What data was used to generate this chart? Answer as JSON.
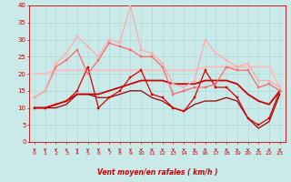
{
  "xlabel": "Vent moyen/en rafales ( km/h )",
  "xlim": [
    -0.5,
    23.5
  ],
  "ylim": [
    0,
    40
  ],
  "yticks": [
    0,
    5,
    10,
    15,
    20,
    25,
    30,
    35,
    40
  ],
  "xticks": [
    0,
    1,
    2,
    3,
    4,
    5,
    6,
    7,
    8,
    9,
    10,
    11,
    12,
    13,
    14,
    15,
    16,
    17,
    18,
    19,
    20,
    21,
    22,
    23
  ],
  "background_color": "#caeaea",
  "grid_color": "#aad4d4",
  "series": [
    {
      "x": [
        0,
        1,
        2,
        3,
        4,
        5,
        6,
        7,
        8,
        9,
        10,
        11,
        12,
        13,
        14,
        15,
        16,
        17,
        18,
        19,
        20,
        21,
        22,
        23
      ],
      "y": [
        10,
        10,
        11,
        12,
        15,
        22,
        10,
        13,
        15,
        19,
        21,
        14,
        13,
        10,
        9,
        13,
        21,
        16,
        16,
        13,
        7,
        5,
        7,
        15
      ],
      "color": "#dd0000",
      "lw": 0.9,
      "marker": "s",
      "ms": 1.8,
      "zorder": 5
    },
    {
      "x": [
        0,
        1,
        2,
        3,
        4,
        5,
        6,
        7,
        8,
        9,
        10,
        11,
        12,
        13,
        14,
        15,
        16,
        17,
        18,
        19,
        20,
        21,
        22,
        23
      ],
      "y": [
        10,
        10,
        11,
        12,
        14,
        14,
        14,
        15,
        16,
        17,
        18,
        18,
        18,
        17,
        17,
        17,
        18,
        18,
        18,
        17,
        14,
        12,
        11,
        15
      ],
      "color": "#cc0000",
      "lw": 1.3,
      "marker": null,
      "ms": 0,
      "zorder": 4
    },
    {
      "x": [
        0,
        1,
        2,
        3,
        4,
        5,
        6,
        7,
        8,
        9,
        10,
        11,
        12,
        13,
        14,
        15,
        16,
        17,
        18,
        19,
        20,
        21,
        22,
        23
      ],
      "y": [
        10,
        10,
        10,
        11,
        14,
        14,
        13,
        13,
        14,
        15,
        15,
        13,
        12,
        10,
        9,
        11,
        12,
        12,
        13,
        12,
        7,
        4,
        6,
        14
      ],
      "color": "#990000",
      "lw": 0.9,
      "marker": null,
      "ms": 0,
      "zorder": 3
    },
    {
      "x": [
        0,
        1,
        2,
        3,
        4,
        5,
        6,
        7,
        8,
        9,
        10,
        11,
        12,
        13,
        14,
        15,
        16,
        17,
        18,
        19,
        20,
        21,
        22,
        23
      ],
      "y": [
        13,
        15,
        22,
        24,
        27,
        20,
        24,
        29,
        28,
        27,
        25,
        25,
        22,
        14,
        15,
        16,
        16,
        17,
        22,
        21,
        21,
        16,
        17,
        15
      ],
      "color": "#ff6666",
      "lw": 0.9,
      "marker": "s",
      "ms": 1.8,
      "zorder": 5
    },
    {
      "x": [
        0,
        1,
        2,
        3,
        4,
        5,
        6,
        7,
        8,
        9,
        10,
        11,
        12,
        13,
        14,
        15,
        16,
        17,
        18,
        19,
        20,
        21,
        22,
        23
      ],
      "y": [
        13,
        15,
        23,
        26,
        31,
        28,
        25,
        30,
        29,
        40,
        27,
        26,
        23,
        17,
        16,
        18,
        30,
        26,
        24,
        22,
        23,
        18,
        18,
        16
      ],
      "color": "#ffaaaa",
      "lw": 0.9,
      "marker": "s",
      "ms": 1.8,
      "zorder": 5
    },
    {
      "x": [
        0,
        1,
        2,
        3,
        4,
        5,
        6,
        7,
        8,
        9,
        10,
        11,
        12,
        13,
        14,
        15,
        16,
        17,
        18,
        19,
        20,
        21,
        22,
        23
      ],
      "y": [
        20,
        20,
        21,
        21,
        21,
        21,
        21,
        21,
        21,
        21,
        21,
        21,
        21,
        21,
        21,
        21,
        22,
        22,
        22,
        22,
        22,
        22,
        22,
        16
      ],
      "color": "#ffbbbb",
      "lw": 1.3,
      "marker": null,
      "ms": 0,
      "zorder": 3
    }
  ]
}
